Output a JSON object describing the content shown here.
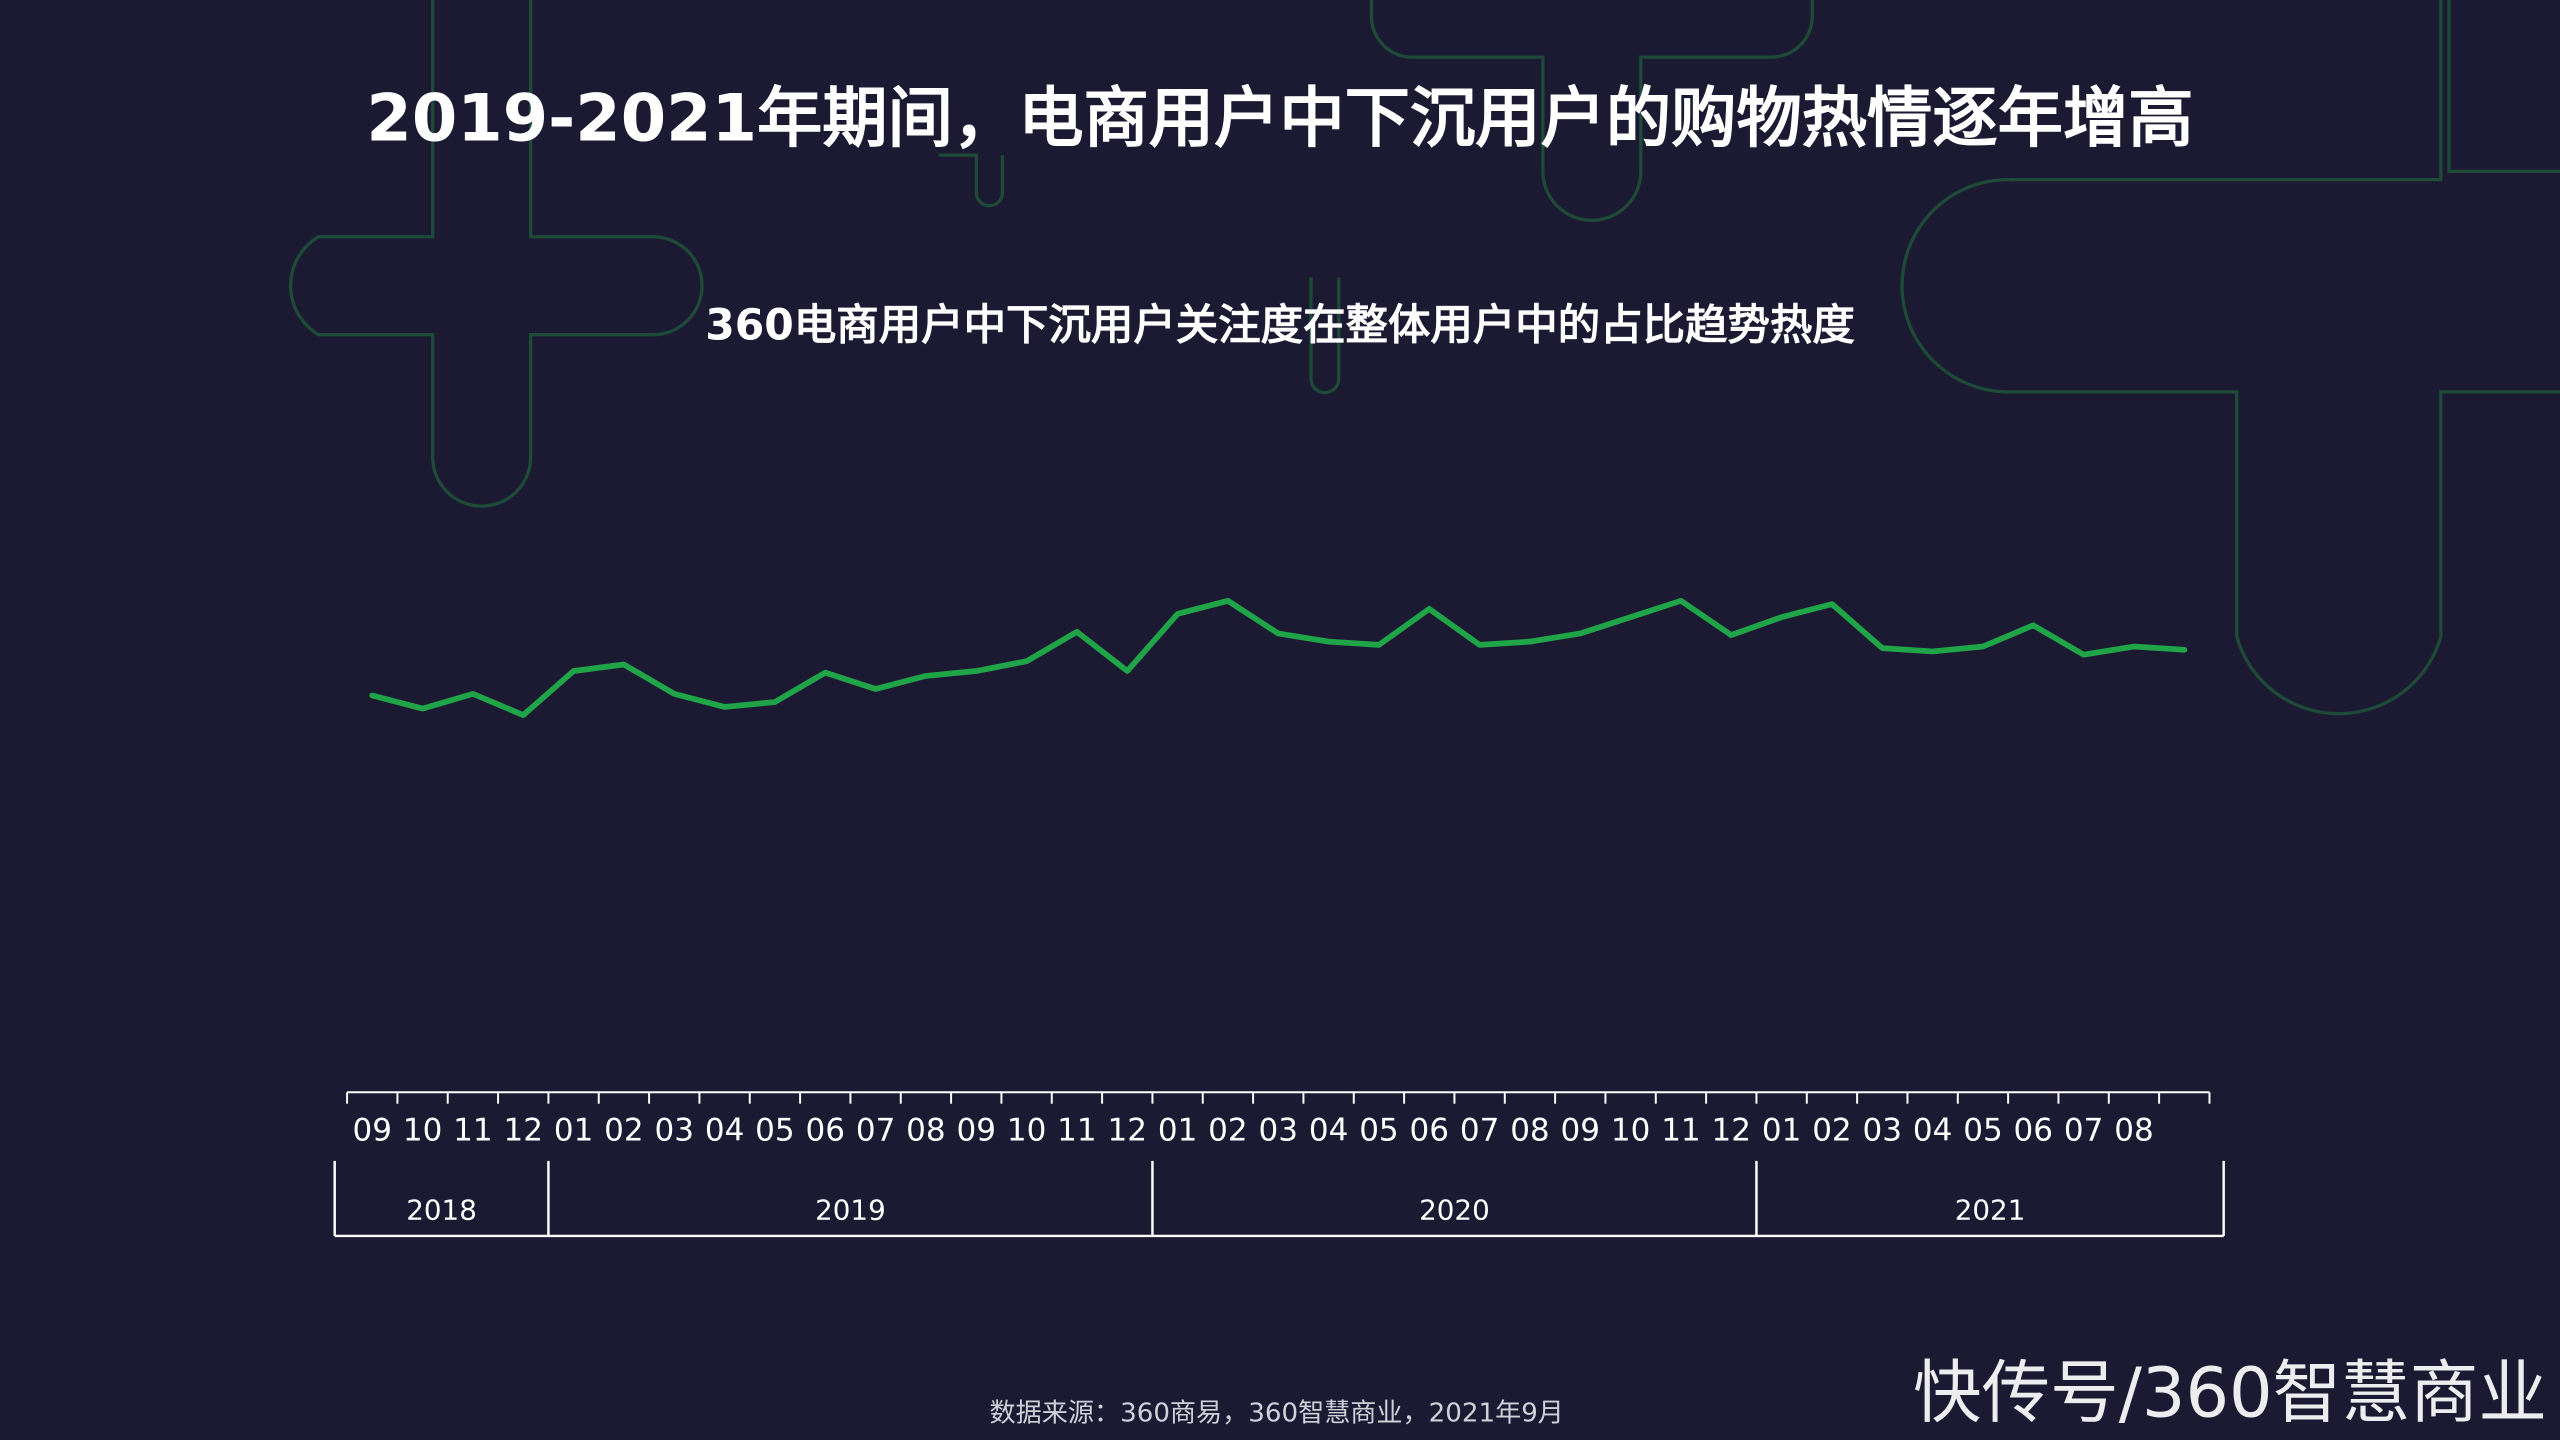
{
  "chart_data": {
    "type": "line",
    "title": "2019-2021年期间，电商用户中下沉用户的购物热情逐年增高",
    "subtitle": "360电商用户中下沉用户关注度在整体用户中的占比趋势热度",
    "categories": [
      "09",
      "10",
      "11",
      "12",
      "01",
      "02",
      "03",
      "04",
      "05",
      "06",
      "07",
      "08",
      "09",
      "10",
      "11",
      "12",
      "01",
      "02",
      "03",
      "04",
      "05",
      "06",
      "07",
      "08",
      "09",
      "10",
      "11",
      "12",
      "01",
      "02",
      "03",
      "04",
      "05",
      "06",
      "07",
      "08",
      null
    ],
    "years": [
      "2018",
      "2019",
      "2020",
      "2021"
    ],
    "series": [
      {
        "name": null,
        "color": "#1fa447",
        "values": [
          48.8,
          47.2,
          49,
          46.4,
          51.8,
          52.6,
          49,
          47.4,
          48,
          51.6,
          49.6,
          51.2,
          51.8,
          53,
          56.6,
          51.8,
          58.8,
          60.4,
          56.4,
          55.4,
          55,
          59.4,
          55,
          55.4,
          56.4,
          58.4,
          60.4,
          56.2,
          58.4,
          60,
          54.6,
          54.2,
          54.8,
          57.4,
          53.8,
          54.8,
          54.4
        ]
      }
    ],
    "ylim": [
      0,
      100
    ],
    "source": "数据来源：360商易，360智慧商业，2021年9月",
    "watermark": "快传号/360智慧商业"
  }
}
